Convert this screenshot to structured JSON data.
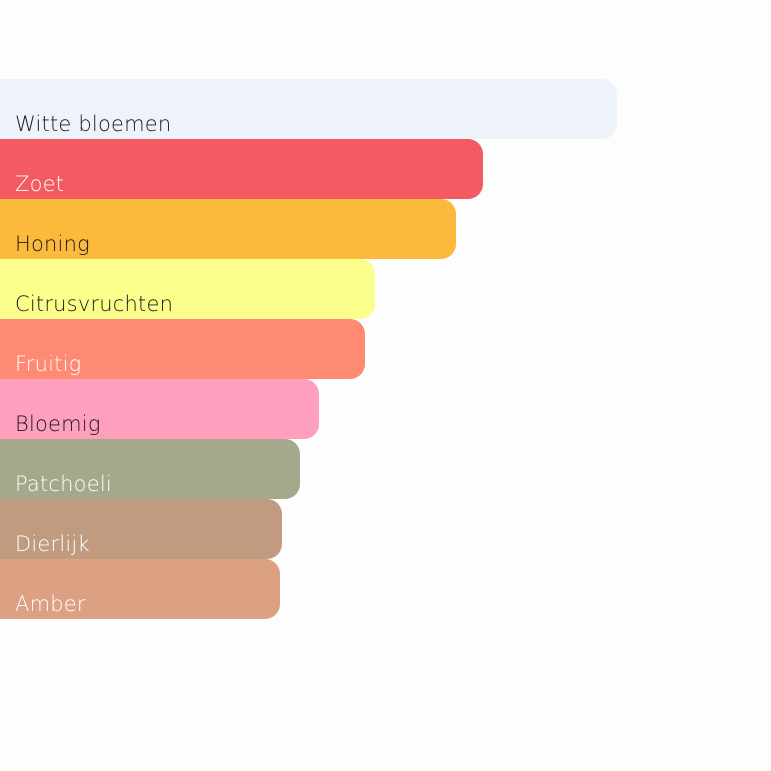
{
  "chart_data": {
    "type": "bar",
    "orientation": "horizontal",
    "categories": [
      "Witte bloemen",
      "Zoet",
      "Honing",
      "Citrusvruchten",
      "Fruitig",
      "Bloemig",
      "Patchoeli",
      "Dierlijk",
      "Amber"
    ],
    "values": [
      100,
      78.3,
      73.9,
      60.8,
      59.2,
      51.7,
      48.6,
      45.7,
      45.4
    ],
    "xlim": [
      0,
      100
    ],
    "grid": false,
    "colors": [
      "#edf2fb",
      "#f15b61",
      "#fcba3d",
      "#fbfe8a",
      "#fe8a73",
      "#fe9fbd",
      "#a5a88b",
      "#c19b80",
      "#dba182"
    ],
    "label_colors": [
      "#1a1a1a",
      "#ffffff",
      "#1a1a1a",
      "#1a1a1a",
      "#ffffff",
      "#1a1a1a",
      "#ffffff",
      "#ffffff",
      "#ffffff"
    ]
  }
}
